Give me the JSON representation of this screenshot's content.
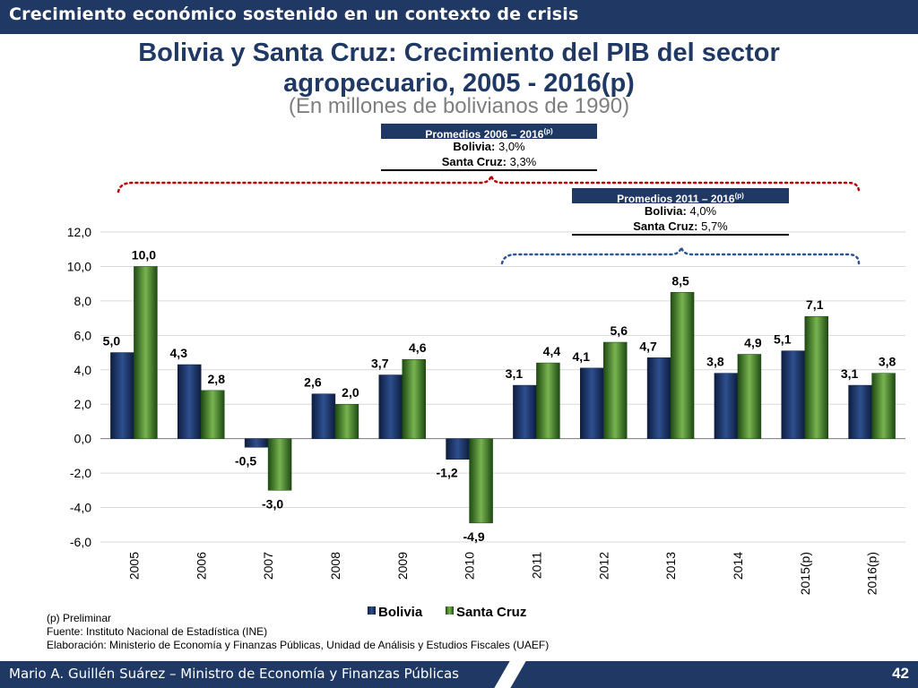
{
  "header": {
    "section_title": "Crecimiento económico sostenido en un contexto de crisis"
  },
  "title_line1": "Bolivia y Santa Cruz: Crecimiento del PIB del sector",
  "title_line2": "agropecuario, 2005 - 2016(p)",
  "subtitle": "(En millones de bolivianos de 1990)",
  "box1": {
    "header": "Promedios 2006 – 2016",
    "sup": "(p)",
    "line1_label": "Bolivia:",
    "line1_value": " 3,0%",
    "line2_label": "Santa Cruz:",
    "line2_value": " 3,3%"
  },
  "box2": {
    "header": "Promedios 2011 – 2016",
    "sup": "(p)",
    "line1_label": "Bolivia:",
    "line1_value": " 4,0%",
    "line2_label": "Santa Cruz:",
    "line2_value": " 5,7%"
  },
  "colors": {
    "bolivia": "#1f3864",
    "santa_cruz": "#4e8a2e",
    "bracket_red": "#c00000",
    "bracket_blue": "#2f5597",
    "navy": "#1f3864"
  },
  "chart_data": {
    "type": "bar",
    "categories": [
      "2005",
      "2006",
      "2007",
      "2008",
      "2009",
      "2010",
      "2011",
      "2012",
      "2013",
      "2014",
      "2015(p)",
      "2016(p)"
    ],
    "series": [
      {
        "name": "Bolivia",
        "values": [
          5.0,
          4.3,
          -0.5,
          2.6,
          3.7,
          -1.2,
          3.1,
          4.1,
          4.7,
          3.8,
          5.1,
          3.1
        ],
        "labels": [
          "5,0",
          "4,3",
          "-0,5",
          "2,6",
          "3,7",
          "-1,2",
          "3,1",
          "4,1",
          "4,7",
          "3,8",
          "5,1",
          "3,1"
        ]
      },
      {
        "name": "Santa Cruz",
        "values": [
          10.0,
          2.8,
          -3.0,
          2.0,
          4.6,
          -4.9,
          4.4,
          5.6,
          8.5,
          4.9,
          7.1,
          3.8
        ],
        "labels": [
          "10,0",
          "2,8",
          "-3,0",
          "2,0",
          "4,6",
          "-4,9",
          "4,4",
          "5,6",
          "8,5",
          "4,9",
          "7,1",
          "3,8"
        ]
      }
    ],
    "ylim": [
      -6,
      12
    ],
    "yticks": [
      "12,0",
      "10,0",
      "8,0",
      "6,0",
      "4,0",
      "2,0",
      "0,0",
      "-2,0",
      "-4,0",
      "-6,0"
    ],
    "grid": true,
    "legend_position": "bottom"
  },
  "notes": {
    "line1": "(p) Preliminar",
    "line2": "Fuente: Instituto Nacional de Estadística (INE)",
    "line3": "Elaboración: Ministerio de Economía y Finanzas Públicas, Unidad de Análisis y Estudios Fiscales (UAEF)"
  },
  "footer": {
    "author": "Mario A. Guillén Suárez – Ministro de Economía y Finanzas Públicas",
    "page_number": "42"
  }
}
